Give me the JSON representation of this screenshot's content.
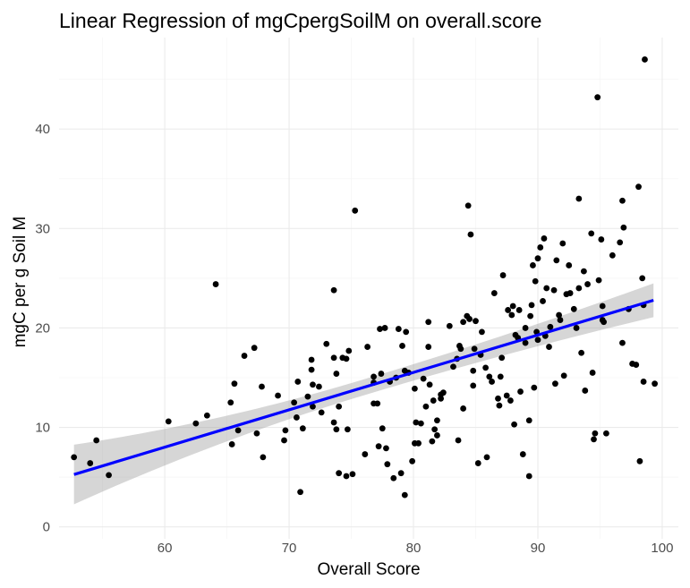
{
  "chart_data": {
    "type": "scatter",
    "title": "Linear Regression of mgCpergSoilM on overall.score",
    "xlabel": "Overall Score",
    "ylabel": "mgC per g Soil M",
    "xlim": [
      51.5,
      101.3
    ],
    "ylim": [
      -1.2,
      49.2
    ],
    "x_ticks": [
      60,
      70,
      80,
      90,
      100
    ],
    "y_ticks": [
      0,
      10,
      20,
      30,
      40
    ],
    "grid": true,
    "legend": "none",
    "colors": {
      "points": "#000000",
      "fit_line": "#0000ff",
      "confidence_band": "#999999",
      "grid": "#ebebeb",
      "tick_text": "#4d4d4d"
    },
    "regression": {
      "x_start": 52.7,
      "x_end": 99.3,
      "slope": 0.376,
      "intercept": -14.55,
      "band_half_width": {
        "at_start": 3.0,
        "at_center": 0.8,
        "at_end": 1.7
      }
    },
    "points": [
      [
        52.7,
        7.0
      ],
      [
        54.0,
        6.4
      ],
      [
        54.5,
        8.7
      ],
      [
        55.5,
        5.2
      ],
      [
        60.3,
        10.6
      ],
      [
        62.5,
        10.4
      ],
      [
        63.4,
        11.2
      ],
      [
        64.1,
        24.4
      ],
      [
        65.3,
        12.5
      ],
      [
        65.4,
        8.3
      ],
      [
        65.6,
        14.4
      ],
      [
        65.9,
        9.7
      ],
      [
        66.4,
        17.2
      ],
      [
        67.2,
        18.0
      ],
      [
        67.4,
        9.4
      ],
      [
        67.8,
        14.1
      ],
      [
        67.9,
        7.0
      ],
      [
        69.1,
        13.2
      ],
      [
        69.6,
        8.7
      ],
      [
        69.7,
        9.7
      ],
      [
        70.4,
        12.5
      ],
      [
        70.6,
        11.0
      ],
      [
        70.7,
        14.6
      ],
      [
        70.9,
        3.5
      ],
      [
        71.1,
        9.9
      ],
      [
        71.5,
        13.1
      ],
      [
        71.8,
        15.8
      ],
      [
        71.8,
        16.8
      ],
      [
        71.9,
        14.3
      ],
      [
        71.9,
        12.1
      ],
      [
        72.4,
        14.1
      ],
      [
        72.6,
        11.5
      ],
      [
        73.0,
        18.4
      ],
      [
        73.6,
        10.5
      ],
      [
        73.6,
        17.0
      ],
      [
        73.6,
        23.8
      ],
      [
        73.8,
        15.4
      ],
      [
        73.8,
        9.8
      ],
      [
        74.0,
        12.1
      ],
      [
        74.0,
        5.4
      ],
      [
        74.3,
        17.0
      ],
      [
        74.6,
        5.1
      ],
      [
        74.6,
        16.9
      ],
      [
        74.7,
        9.8
      ],
      [
        74.8,
        17.7
      ],
      [
        75.1,
        5.3
      ],
      [
        75.3,
        31.8
      ],
      [
        76.1,
        7.3
      ],
      [
        76.3,
        18.1
      ],
      [
        76.8,
        14.5
      ],
      [
        76.8,
        15.1
      ],
      [
        76.8,
        12.4
      ],
      [
        77.1,
        12.4
      ],
      [
        77.2,
        8.1
      ],
      [
        77.3,
        19.9
      ],
      [
        77.4,
        15.4
      ],
      [
        77.5,
        9.9
      ],
      [
        77.7,
        20.0
      ],
      [
        77.8,
        7.9
      ],
      [
        77.9,
        6.3
      ],
      [
        78.1,
        14.6
      ],
      [
        78.4,
        4.9
      ],
      [
        78.6,
        15.0
      ],
      [
        78.8,
        19.9
      ],
      [
        79.0,
        5.4
      ],
      [
        79.1,
        18.2
      ],
      [
        79.3,
        15.7
      ],
      [
        79.3,
        3.2
      ],
      [
        79.4,
        19.6
      ],
      [
        79.6,
        15.5
      ],
      [
        79.9,
        6.6
      ],
      [
        80.1,
        8.4
      ],
      [
        80.1,
        13.9
      ],
      [
        80.2,
        10.5
      ],
      [
        80.4,
        8.4
      ],
      [
        80.6,
        10.4
      ],
      [
        80.8,
        14.9
      ],
      [
        81.0,
        12.1
      ],
      [
        81.2,
        20.6
      ],
      [
        81.2,
        18.1
      ],
      [
        81.3,
        14.3
      ],
      [
        81.5,
        8.6
      ],
      [
        81.6,
        12.7
      ],
      [
        81.7,
        9.8
      ],
      [
        81.9,
        9.2
      ],
      [
        81.9,
        10.7
      ],
      [
        82.2,
        13.3
      ],
      [
        82.2,
        12.9
      ],
      [
        82.4,
        13.5
      ],
      [
        82.9,
        20.2
      ],
      [
        83.2,
        16.1
      ],
      [
        83.5,
        16.9
      ],
      [
        83.6,
        8.7
      ],
      [
        83.7,
        18.2
      ],
      [
        83.8,
        17.9
      ],
      [
        84.0,
        20.6
      ],
      [
        84.0,
        11.9
      ],
      [
        84.3,
        21.2
      ],
      [
        84.4,
        32.3
      ],
      [
        84.5,
        20.9
      ],
      [
        84.6,
        29.4
      ],
      [
        84.8,
        15.7
      ],
      [
        84.8,
        14.2
      ],
      [
        84.9,
        17.9
      ],
      [
        85.0,
        20.7
      ],
      [
        85.2,
        6.4
      ],
      [
        85.4,
        17.3
      ],
      [
        85.5,
        19.6
      ],
      [
        85.8,
        16.0
      ],
      [
        85.9,
        7.0
      ],
      [
        86.1,
        15.1
      ],
      [
        86.3,
        14.6
      ],
      [
        86.5,
        23.5
      ],
      [
        86.8,
        12.9
      ],
      [
        86.9,
        12.2
      ],
      [
        87.0,
        15.1
      ],
      [
        87.1,
        17.0
      ],
      [
        87.2,
        25.3
      ],
      [
        87.5,
        13.2
      ],
      [
        87.6,
        21.8
      ],
      [
        87.8,
        12.7
      ],
      [
        87.9,
        21.3
      ],
      [
        88.0,
        22.2
      ],
      [
        88.1,
        10.3
      ],
      [
        88.2,
        19.3
      ],
      [
        88.4,
        19.0
      ],
      [
        88.5,
        21.8
      ],
      [
        88.6,
        13.6
      ],
      [
        88.8,
        7.3
      ],
      [
        89.0,
        18.5
      ],
      [
        89.0,
        20.0
      ],
      [
        89.3,
        10.7
      ],
      [
        89.3,
        5.1
      ],
      [
        89.4,
        21.2
      ],
      [
        89.5,
        22.3
      ],
      [
        89.6,
        26.3
      ],
      [
        89.7,
        14.0
      ],
      [
        89.8,
        24.7
      ],
      [
        89.9,
        19.6
      ],
      [
        90.0,
        18.8
      ],
      [
        90.0,
        27.0
      ],
      [
        90.2,
        28.1
      ],
      [
        90.4,
        22.7
      ],
      [
        90.5,
        29.0
      ],
      [
        90.6,
        19.2
      ],
      [
        90.7,
        24.0
      ],
      [
        90.9,
        18.1
      ],
      [
        91.0,
        20.1
      ],
      [
        91.3,
        23.8
      ],
      [
        91.4,
        14.4
      ],
      [
        91.5,
        26.8
      ],
      [
        91.7,
        21.3
      ],
      [
        91.8,
        20.8
      ],
      [
        92.0,
        28.5
      ],
      [
        92.1,
        15.2
      ],
      [
        92.3,
        23.4
      ],
      [
        92.5,
        26.3
      ],
      [
        92.6,
        23.5
      ],
      [
        92.9,
        21.9
      ],
      [
        93.1,
        20.0
      ],
      [
        93.3,
        24.0
      ],
      [
        93.3,
        33.0
      ],
      [
        93.5,
        17.5
      ],
      [
        93.7,
        25.7
      ],
      [
        93.8,
        13.7
      ],
      [
        94.0,
        24.4
      ],
      [
        94.3,
        29.5
      ],
      [
        94.4,
        15.5
      ],
      [
        94.5,
        8.8
      ],
      [
        94.6,
        9.4
      ],
      [
        94.8,
        43.2
      ],
      [
        94.9,
        24.8
      ],
      [
        95.1,
        28.9
      ],
      [
        95.2,
        22.2
      ],
      [
        95.2,
        20.8
      ],
      [
        95.3,
        20.6
      ],
      [
        95.5,
        9.4
      ],
      [
        96.0,
        27.3
      ],
      [
        96.6,
        28.6
      ],
      [
        96.8,
        32.8
      ],
      [
        96.9,
        30.1
      ],
      [
        97.3,
        21.9
      ],
      [
        97.6,
        16.4
      ],
      [
        97.9,
        16.3
      ],
      [
        98.1,
        34.2
      ],
      [
        98.2,
        6.6
      ],
      [
        98.4,
        25.0
      ],
      [
        98.5,
        22.3
      ],
      [
        98.6,
        47.0
      ],
      [
        99.4,
        14.4
      ],
      [
        98.5,
        14.6
      ],
      [
        96.8,
        18.5
      ]
    ]
  }
}
